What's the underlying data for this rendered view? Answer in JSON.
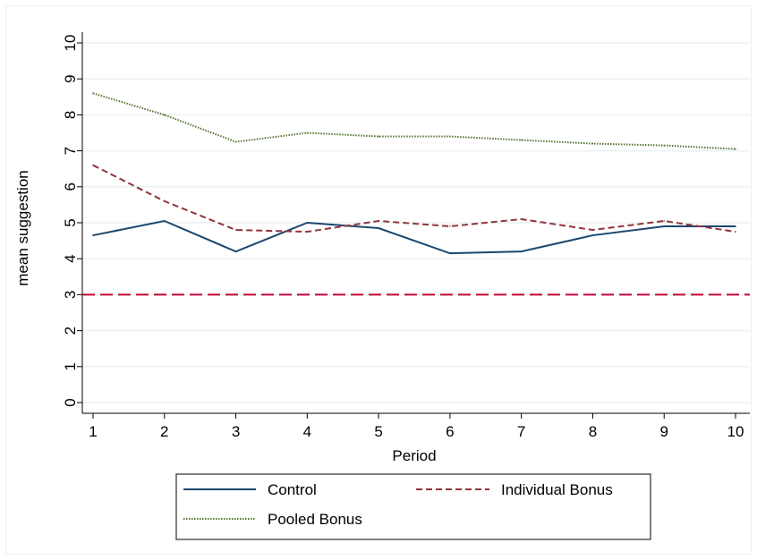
{
  "chart_data": {
    "type": "line",
    "xlabel": "Period",
    "ylabel": "mean suggestion",
    "x": [
      1,
      2,
      3,
      4,
      5,
      6,
      7,
      8,
      9,
      10
    ],
    "xlim": [
      1,
      10
    ],
    "ylim": [
      0,
      10
    ],
    "yticks": [
      0,
      1,
      2,
      3,
      4,
      5,
      6,
      7,
      8,
      9,
      10
    ],
    "grid": true,
    "legend_position": "bottom",
    "series": [
      {
        "name": "Control",
        "color": "#1a476f",
        "dash": "solid",
        "values": [
          4.65,
          5.05,
          4.2,
          5.0,
          4.85,
          4.15,
          4.2,
          4.65,
          4.9,
          4.9
        ]
      },
      {
        "name": "Individual Bonus",
        "color": "#90353b",
        "dash": "dashed",
        "values": [
          6.6,
          5.6,
          4.8,
          4.75,
          5.05,
          4.9,
          5.1,
          4.8,
          5.05,
          4.75
        ]
      },
      {
        "name": "Pooled Bonus",
        "color": "#55752f",
        "dash": "dotted",
        "values": [
          8.6,
          8.0,
          7.25,
          7.5,
          7.4,
          7.4,
          7.3,
          7.2,
          7.15,
          7.05
        ]
      }
    ],
    "reference_line": {
      "y": 3,
      "color": "#c10534",
      "dash": "dashed"
    }
  }
}
